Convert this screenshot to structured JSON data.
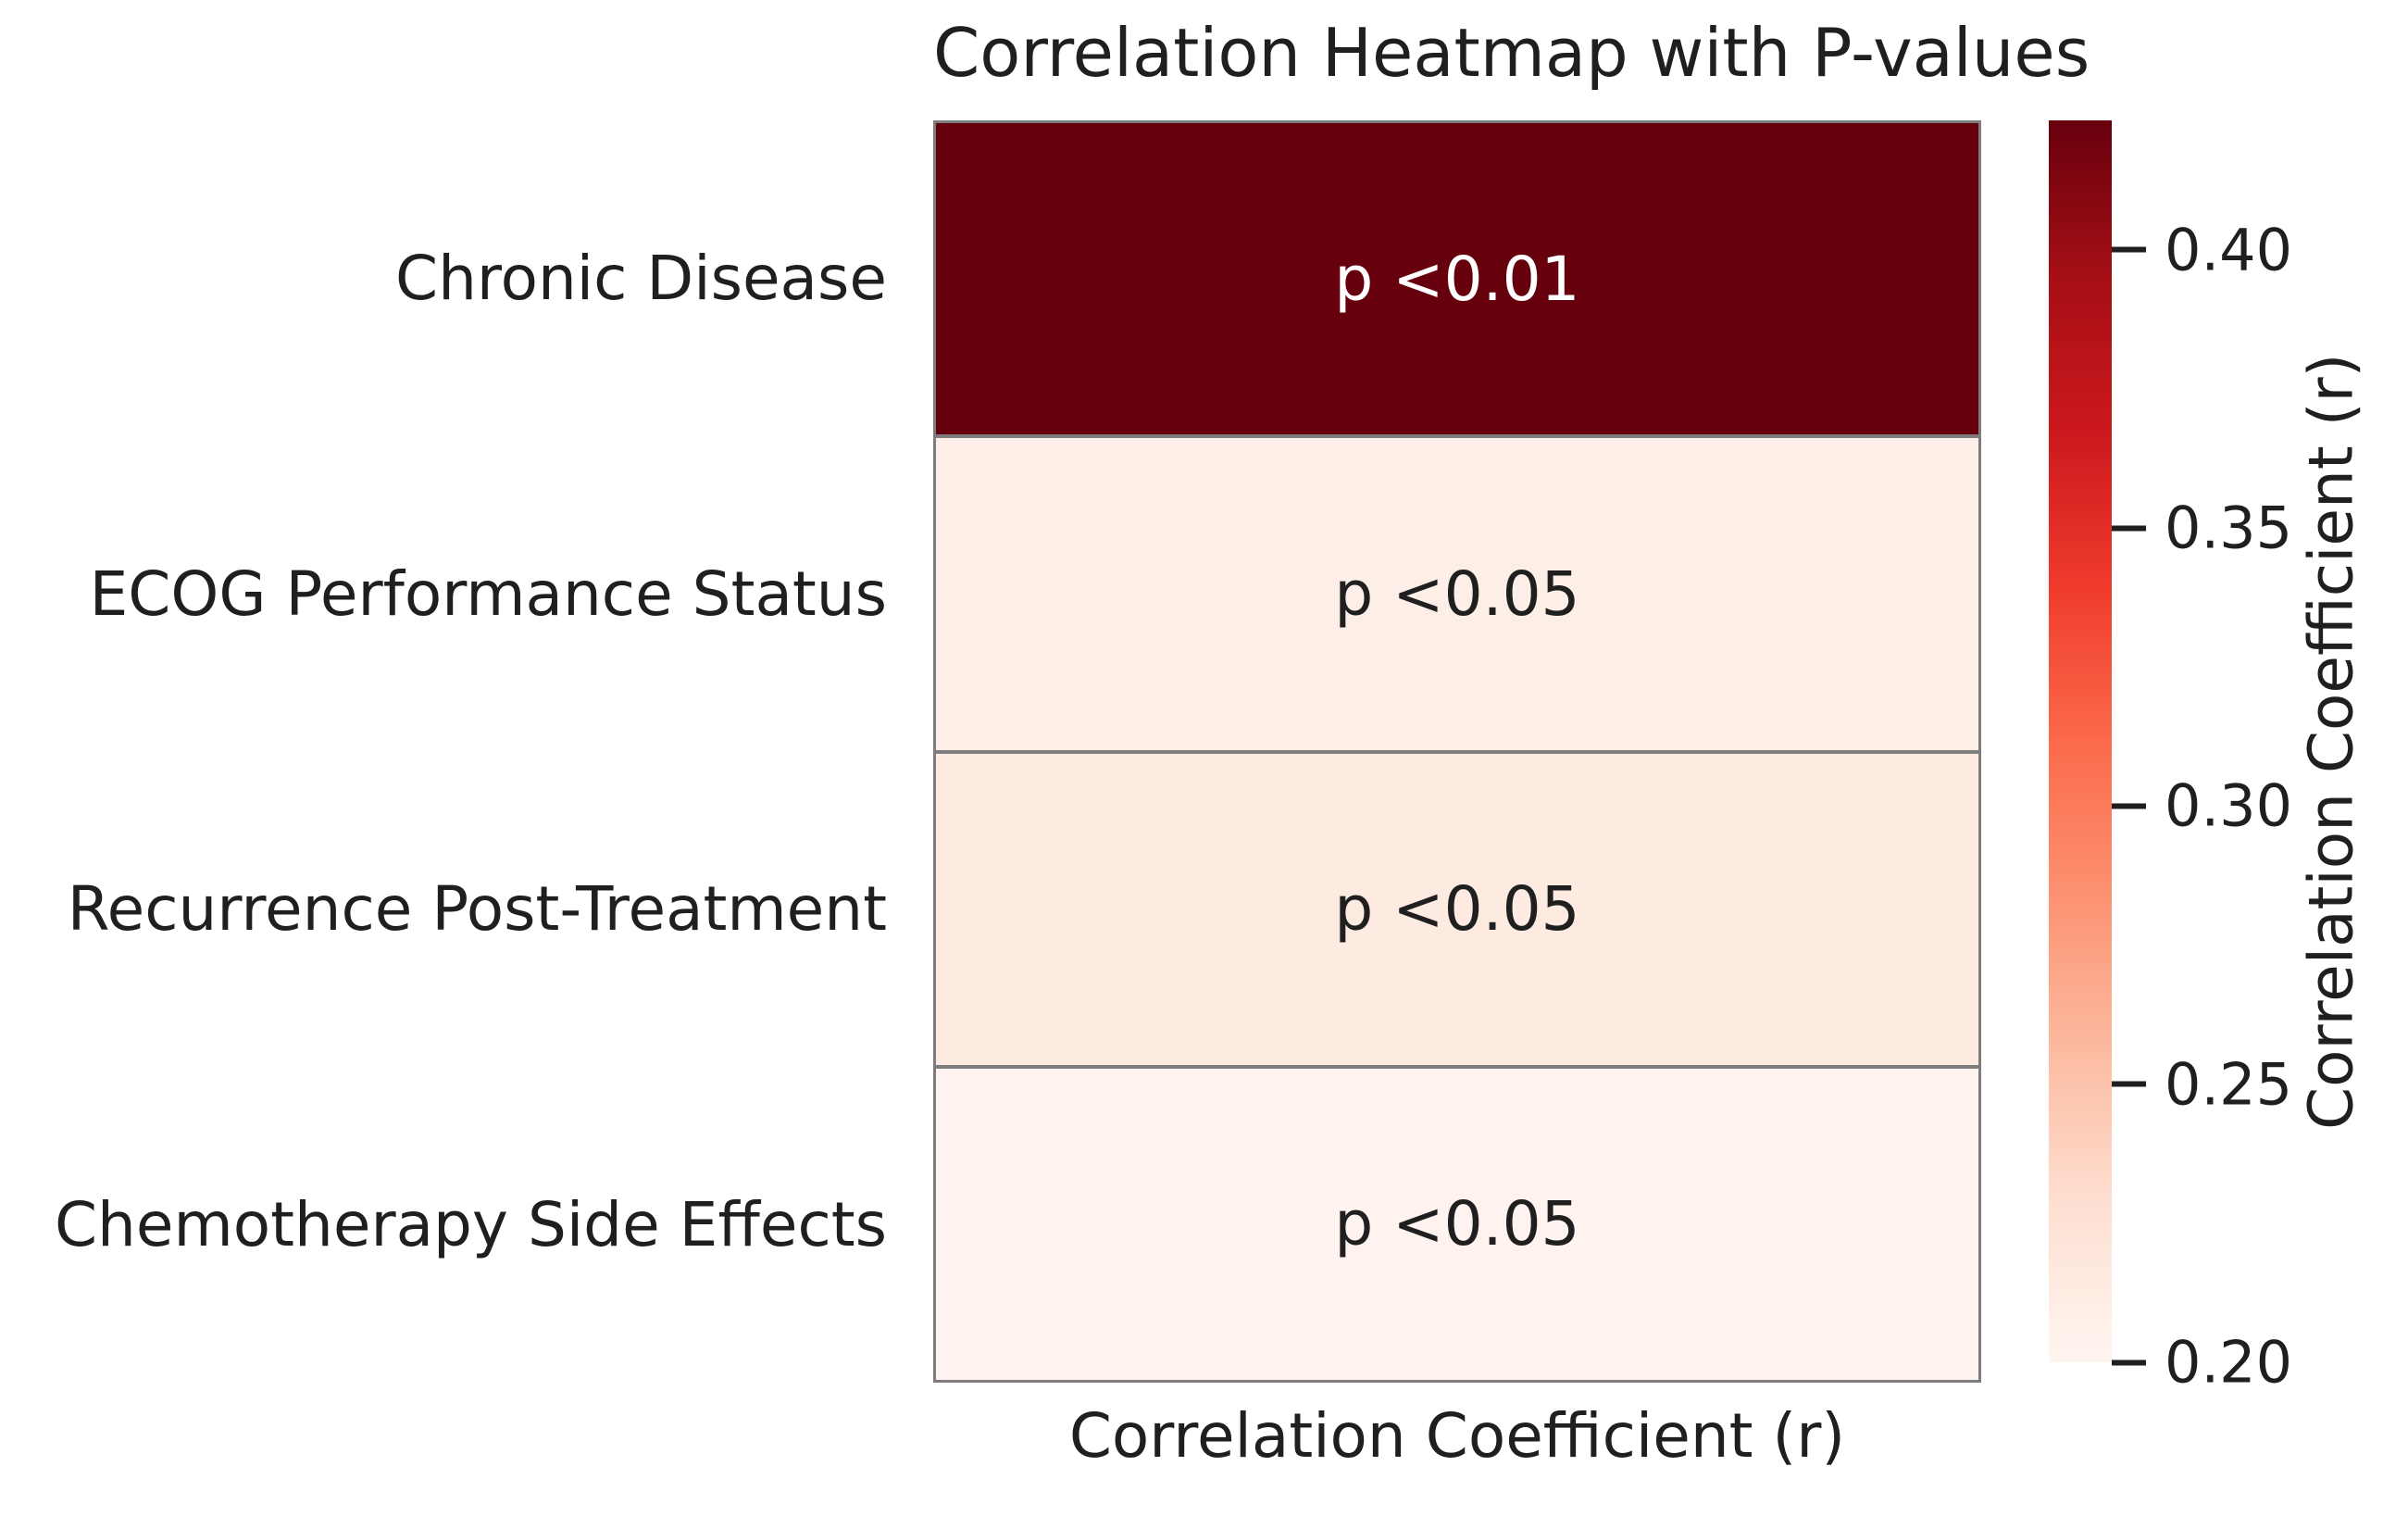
{
  "figure": {
    "title": "Correlation Heatmap with P-values",
    "xlabel": "Correlation Coefficient (r)",
    "colorbar_label": "Correlation Coefficient (r)"
  },
  "heatmap": {
    "rows": [
      {
        "label": "Chronic Disease",
        "annotation": "p <0.01",
        "color": "#67000d",
        "text_color": "#ffffff"
      },
      {
        "label": "ECOG Performance Status",
        "annotation": "p <0.05",
        "color": "#fdefe8",
        "text_color": "#1f1f1f"
      },
      {
        "label": "Recurrence Post-Treatment",
        "annotation": "p <0.05",
        "color": "#fdebe1",
        "text_color": "#1f1f1f"
      },
      {
        "label": "Chemotherapy Side Effects",
        "annotation": "p <0.05",
        "color": "#fef3ee",
        "text_color": "#1f1f1f"
      }
    ]
  },
  "colorbar": {
    "vmin": 0.2,
    "vmax": 0.4233,
    "gradient_top_to_bottom": [
      "#67000d",
      "#a50f15",
      "#cb181d",
      "#ef3b2c",
      "#fb6a4a",
      "#fc9272",
      "#fcbba1",
      "#fee0d2",
      "#fff5f0"
    ],
    "ticks": [
      {
        "value": 0.4,
        "label": "0.40"
      },
      {
        "value": 0.35,
        "label": "0.35"
      },
      {
        "value": 0.3,
        "label": "0.30"
      },
      {
        "value": 0.25,
        "label": "0.25"
      },
      {
        "value": 0.2,
        "label": "0.20"
      }
    ]
  },
  "chart_data": {
    "type": "heatmap",
    "title": "Correlation Heatmap with P-values",
    "xlabel": "Correlation Coefficient (r)",
    "colorbar_label": "Correlation Coefficient (r)",
    "rows": [
      "Chronic Disease",
      "ECOG Performance Status",
      "Recurrence Post-Treatment",
      "Chemotherapy Side Effects"
    ],
    "cell_annotations": [
      "p <0.01",
      "p <0.05",
      "p <0.05",
      "p <0.05"
    ],
    "r_values_estimated": [
      0.42,
      0.21,
      0.22,
      0.2
    ],
    "colorbar_ticks": [
      0.4,
      0.35,
      0.3,
      0.25,
      0.2
    ],
    "colorbar_range": [
      0.2,
      0.42
    ],
    "grid": false,
    "legend_position": "right-colorbar"
  }
}
